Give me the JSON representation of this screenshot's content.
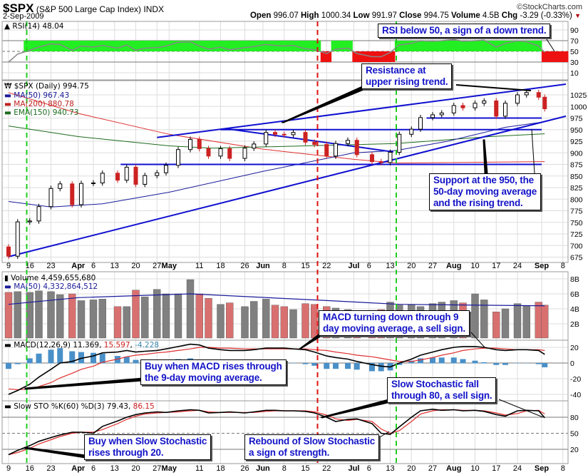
{
  "header": {
    "symbol": "$SPX",
    "name": "(S&P 500 Large Cap Index)",
    "exchange": "INDX",
    "date": "2-Sep-2009",
    "watermark": "©StockCharts.com",
    "quote": {
      "open_label": "Open",
      "open": "996.07",
      "high_label": "High",
      "high": "1000.34",
      "low_label": "Low",
      "low": "991.97",
      "close_label": "Close",
      "close": "994.75",
      "volume_label": "Volume",
      "volume": "4.5B",
      "chg_label": "Chg",
      "chg": "-3.29 (-0.33%)"
    }
  },
  "chart_data": {
    "type": "stock",
    "colors": {
      "up": "#000000",
      "down": "#cc2222",
      "ma50": "#1a1a9a",
      "ma200": "#e03030",
      "ema150": "#1d6b1d",
      "trend": "#1010d0",
      "rsi_up": "#22ee22",
      "rsi_down": "#ee1111",
      "vol_up": "#808080",
      "vol_down": "#d97070",
      "hist": "#4a90c8",
      "buy_marker": "#22cc22",
      "sell_marker": "#dd1111"
    },
    "dates": [
      "2009-03-09",
      "2009-03-12",
      "2009-03-16",
      "2009-03-19",
      "2009-03-23",
      "2009-03-26",
      "2009-03-30",
      "2009-04-02",
      "2009-04-06",
      "2009-04-09",
      "2009-04-14",
      "2009-04-17",
      "2009-04-20",
      "2009-04-23",
      "2009-04-27",
      "2009-04-30",
      "2009-05-04",
      "2009-05-08",
      "2009-05-11",
      "2009-05-14",
      "2009-05-18",
      "2009-05-21",
      "2009-05-26",
      "2009-05-29",
      "2009-06-02",
      "2009-06-05",
      "2009-06-08",
      "2009-06-11",
      "2009-06-15",
      "2009-06-18",
      "2009-06-22",
      "2009-06-25",
      "2009-06-29",
      "2009-07-02",
      "2009-07-07",
      "2009-07-10",
      "2009-07-13",
      "2009-07-16",
      "2009-07-20",
      "2009-07-23",
      "2009-07-27",
      "2009-07-30",
      "2009-08-03",
      "2009-08-06",
      "2009-08-10",
      "2009-08-13",
      "2009-08-17",
      "2009-08-20",
      "2009-08-24",
      "2009-08-27",
      "2009-08-31",
      "2009-09-02"
    ],
    "price": {
      "legend": "$SPX (Daily) 994.75",
      "close": [
        677,
        751,
        753,
        784,
        823,
        833,
        788,
        834,
        835,
        856,
        841,
        869,
        832,
        851,
        857,
        873,
        907,
        929,
        909,
        893,
        909,
        888,
        910,
        919,
        944,
        940,
        939,
        944,
        923,
        918,
        893,
        920,
        927,
        896,
        881,
        879,
        901,
        940,
        951,
        976,
        982,
        986,
        1002,
        997,
        1007,
        1012,
        979,
        1007,
        1025,
        1030,
        1020,
        995
      ],
      "ticks": [
        675,
        700,
        725,
        750,
        775,
        800,
        825,
        850,
        875,
        900,
        925,
        950,
        975,
        1000,
        1025
      ]
    },
    "ma50": {
      "label": "MA(50) 967.43",
      "points": [
        [
          "2009-03-09",
          795
        ],
        [
          "2009-03-23",
          783
        ],
        [
          "2009-04-09",
          790
        ],
        [
          "2009-05-01",
          815
        ],
        [
          "2009-06-01",
          860
        ],
        [
          "2009-07-01",
          900
        ],
        [
          "2009-07-15",
          905
        ],
        [
          "2009-08-01",
          925
        ],
        [
          "2009-08-20",
          955
        ],
        [
          "2009-09-02",
          967
        ]
      ]
    },
    "ma200": {
      "label": "MA(200) 880.78",
      "points": [
        [
          "2009-03-09",
          1030
        ],
        [
          "2009-04-01",
          985
        ],
        [
          "2009-05-01",
          940
        ],
        [
          "2009-06-01",
          908
        ],
        [
          "2009-07-01",
          886
        ],
        [
          "2009-07-15",
          878
        ],
        [
          "2009-09-02",
          881
        ]
      ]
    },
    "ema150": {
      "label": "EMA(150) 940.73",
      "points": [
        [
          "2009-03-09",
          958
        ],
        [
          "2009-04-01",
          935
        ],
        [
          "2009-05-01",
          915
        ],
        [
          "2009-05-15",
          910
        ],
        [
          "2009-06-15",
          915
        ],
        [
          "2009-07-15",
          920
        ],
        [
          "2009-08-15",
          935
        ],
        [
          "2009-09-02",
          941
        ]
      ]
    },
    "trendlines": [
      {
        "from": [
          "2009-03-09",
          676
        ],
        "to": [
          "2009-09-09",
          979
        ]
      },
      {
        "from": [
          "2009-04-27",
          933
        ],
        "to": [
          "2009-09-09",
          1048
        ]
      },
      {
        "from": [
          "2009-04-15",
          875
        ],
        "to": [
          "2009-09-01",
          875
        ]
      },
      {
        "from": [
          "2009-05-18",
          950
        ],
        "to": [
          "2009-09-01",
          950
        ]
      },
      {
        "from": [
          "2009-07-25",
          975
        ],
        "to": [
          "2009-09-01",
          975
        ]
      },
      {
        "from": [
          "2009-05-20",
          952
        ],
        "to": [
          "2009-07-14",
          902
        ]
      }
    ],
    "rsi": {
      "label": "RSI(14) 48.04",
      "values": [
        30,
        45,
        52,
        58,
        64,
        63,
        52,
        60,
        58,
        61,
        56,
        62,
        52,
        56,
        57,
        60,
        67,
        68,
        60,
        54,
        58,
        53,
        57,
        59,
        63,
        61,
        60,
        61,
        55,
        53,
        46,
        54,
        56,
        46,
        40,
        40,
        48,
        62,
        65,
        70,
        69,
        70,
        72,
        69,
        70,
        71,
        58,
        65,
        70,
        68,
        60,
        48
      ],
      "ticks": [
        10,
        30,
        50,
        70,
        90
      ]
    },
    "volume": {
      "label": "Volume 4,459,655,680",
      "ma_label": "MA(50) 4,332,864,512",
      "values": [
        6.2,
        6.3,
        6.2,
        6.4,
        6.3,
        5.9,
        6.0,
        5.1,
        5.2,
        5.3,
        4.3,
        4.3,
        6.5,
        5.6,
        6.6,
        6.0,
        6.0,
        7.9,
        6.0,
        5.4,
        4.6,
        4.8,
        4.3,
        5.0,
        5.3,
        4.5,
        4.3,
        3.9,
        4.7,
        4.6,
        4.3,
        4.1,
        3.9,
        3.6,
        3.8,
        3.9,
        4.9,
        4.5,
        4.6,
        4.3,
        4.7,
        4.9,
        5.1,
        4.8,
        6.0,
        5.2,
        3.6,
        4.0,
        4.7,
        4.4,
        4.9,
        4.5
      ],
      "ma_points": [
        [
          "2009-03-09",
          4.6
        ],
        [
          "2009-04-01",
          5.5
        ],
        [
          "2009-05-08",
          6.0
        ],
        [
          "2009-06-22",
          5.1
        ],
        [
          "2009-07-16",
          4.6
        ],
        [
          "2009-09-02",
          4.4
        ]
      ],
      "ticks": [
        "2B",
        "4B",
        "6B",
        "8B"
      ]
    },
    "macd": {
      "label": "MACD(12,26,9)",
      "macd_value": "11.369",
      "signal_value": "15.597",
      "hist_value": "-4.228",
      "macd": [
        -40,
        -35,
        -27,
        -18,
        -8,
        0,
        2,
        6,
        9,
        13,
        14,
        16,
        14,
        15,
        16,
        18,
        21,
        24,
        23,
        19,
        17,
        16,
        16,
        17,
        19,
        19,
        19,
        18,
        17,
        14,
        9,
        7,
        5,
        2,
        -2,
        -4,
        -5,
        0,
        5,
        10,
        14,
        17,
        20,
        21,
        21,
        20,
        17,
        16,
        17,
        17,
        16,
        11
      ],
      "signal": [
        -33,
        -34,
        -33,
        -30,
        -25,
        -19,
        -13,
        -8,
        -4,
        1,
        5,
        8,
        10,
        11,
        13,
        14,
        16,
        18,
        20,
        20,
        19,
        19,
        18,
        18,
        18,
        18,
        18,
        18,
        18,
        17,
        16,
        14,
        12,
        10,
        8,
        6,
        4,
        2,
        2,
        4,
        7,
        10,
        13,
        16,
        18,
        19,
        19,
        18,
        17,
        17,
        17,
        16
      ],
      "ticks": [
        -40,
        -20,
        0,
        20
      ]
    },
    "sto": {
      "label": "Slow STO %K(60) %D(3)",
      "k_value": "79.43",
      "d_value": "86.15",
      "k": [
        10,
        18,
        27,
        35,
        42,
        47,
        52,
        52,
        50,
        63,
        73,
        80,
        85,
        88,
        90,
        89,
        92,
        94,
        93,
        88,
        89,
        90,
        88,
        90,
        93,
        93,
        92,
        92,
        91,
        88,
        80,
        72,
        76,
        77,
        68,
        50,
        48,
        62,
        80,
        92,
        95,
        93,
        94,
        92,
        93,
        91,
        85,
        82,
        92,
        93,
        92,
        79
      ],
      "d": [
        10,
        14,
        22,
        30,
        38,
        44,
        50,
        52,
        52,
        57,
        68,
        76,
        82,
        86,
        88,
        89,
        90,
        92,
        93,
        90,
        89,
        89,
        89,
        89,
        91,
        92,
        92,
        92,
        92,
        90,
        84,
        77,
        74,
        76,
        72,
        58,
        50,
        55,
        72,
        86,
        92,
        94,
        94,
        93,
        93,
        92,
        88,
        84,
        87,
        92,
        93,
        86
      ],
      "ticks": [
        20,
        50,
        80
      ]
    },
    "xticks": [
      {
        "date": "2009-03-09",
        "label": "9",
        "bold": false
      },
      {
        "date": "2009-03-16",
        "label": "16",
        "bold": false
      },
      {
        "date": "2009-03-23",
        "label": "23",
        "bold": false
      },
      {
        "date": "2009-04-01",
        "label": "Apr",
        "bold": true
      },
      {
        "date": "2009-04-06",
        "label": "6",
        "bold": false
      },
      {
        "date": "2009-04-13",
        "label": "13",
        "bold": false
      },
      {
        "date": "2009-04-20",
        "label": "20",
        "bold": false
      },
      {
        "date": "2009-04-27",
        "label": "27",
        "bold": false
      },
      {
        "date": "2009-05-01",
        "label": "May",
        "bold": true
      },
      {
        "date": "2009-05-11",
        "label": "11",
        "bold": false
      },
      {
        "date": "2009-05-18",
        "label": "18",
        "bold": false
      },
      {
        "date": "2009-05-26",
        "label": "26",
        "bold": false
      },
      {
        "date": "2009-06-01",
        "label": "Jun",
        "bold": true
      },
      {
        "date": "2009-06-08",
        "label": "8",
        "bold": false
      },
      {
        "date": "2009-06-15",
        "label": "15",
        "bold": false
      },
      {
        "date": "2009-06-22",
        "label": "22",
        "bold": false
      },
      {
        "date": "2009-07-01",
        "label": "Jul",
        "bold": true
      },
      {
        "date": "2009-07-06",
        "label": "6",
        "bold": false
      },
      {
        "date": "2009-07-13",
        "label": "13",
        "bold": false
      },
      {
        "date": "2009-07-20",
        "label": "20",
        "bold": false
      },
      {
        "date": "2009-07-27",
        "label": "27",
        "bold": false
      },
      {
        "date": "2009-08-03",
        "label": "Aug",
        "bold": true
      },
      {
        "date": "2009-08-10",
        "label": "10",
        "bold": false
      },
      {
        "date": "2009-08-17",
        "label": "17",
        "bold": false
      },
      {
        "date": "2009-08-24",
        "label": "24",
        "bold": false
      },
      {
        "date": "2009-09-01",
        "label": "Sep",
        "bold": true
      },
      {
        "date": "2009-09-08",
        "label": "8",
        "bold": false
      }
    ],
    "markers": [
      {
        "date": "2009-03-15",
        "signal": "buy"
      },
      {
        "date": "2009-06-19",
        "signal": "sell"
      },
      {
        "date": "2009-07-15",
        "signal": "buy"
      }
    ]
  },
  "annotations": {
    "rsi": [
      "RSI below 50, a sign of a down trend."
    ],
    "resistance": [
      "Resistance at",
      "upper rising trend."
    ],
    "support": [
      "Support at the 950, the",
      "50-day moving average",
      "and the rising trend."
    ],
    "macd_sell": [
      "MACD turning down through 9",
      "day moving average, a sell sign."
    ],
    "macd_buy": [
      "Buy when MACD rises through",
      "the 9-day moving average."
    ],
    "sto_sell": [
      "Slow Stochastic fall",
      "through 80, a sell sign."
    ],
    "sto_buy": [
      "Buy when Slow Stochastic",
      "rises through 20."
    ],
    "sto_rebound": [
      "Rebound of Slow Stochastic",
      "a sign of strength."
    ]
  }
}
